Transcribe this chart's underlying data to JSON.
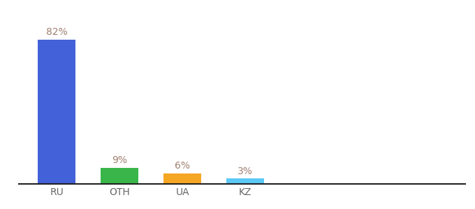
{
  "categories": [
    "RU",
    "OTH",
    "UA",
    "KZ"
  ],
  "values": [
    82,
    9,
    6,
    3
  ],
  "labels": [
    "82%",
    "9%",
    "6%",
    "3%"
  ],
  "bar_colors": [
    "#4361d8",
    "#3ab54a",
    "#f5a623",
    "#5bc8f5"
  ],
  "background_color": "#ffffff",
  "ylim": [
    0,
    95
  ],
  "label_color": "#a08070",
  "label_fontsize": 10,
  "tick_fontsize": 10,
  "tick_color": "#666666",
  "bar_width": 0.6,
  "x_positions": [
    0,
    1,
    2,
    3
  ],
  "xlim": [
    -0.6,
    6.5
  ]
}
